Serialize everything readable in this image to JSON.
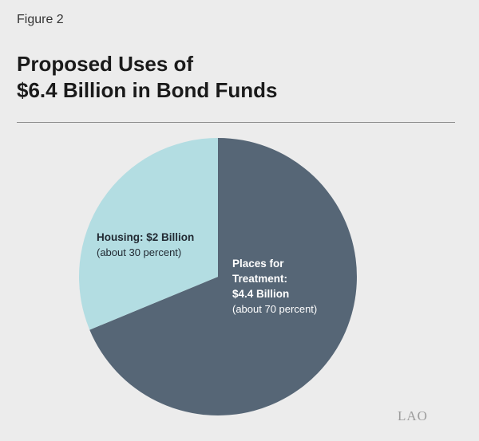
{
  "figure_label": "Figure 2",
  "title_lines": [
    "Proposed Uses of",
    "$6.4 Billion in Bond Funds"
  ],
  "logo_text": "LAO",
  "colors": {
    "housing": "#b3dde2",
    "treatment": "#566676",
    "background": "#ececec"
  },
  "chart_data": {
    "type": "pie",
    "title": "Proposed Uses of $6.4 Billion in Bond Funds",
    "unit": "Billion",
    "slices": [
      {
        "name": "Places for Treatment",
        "value": 4.4,
        "percent": 70,
        "label_lines": [
          "Places for",
          "Treatment:",
          "$4.4 Billion"
        ],
        "sublabel": "(about 70 percent)",
        "color": "#566676"
      },
      {
        "name": "Housing",
        "value": 2.0,
        "percent": 30,
        "label_lines": [
          "Housing: $2 Billion"
        ],
        "sublabel": "(about 30 percent)",
        "color": "#b3dde2"
      }
    ]
  }
}
